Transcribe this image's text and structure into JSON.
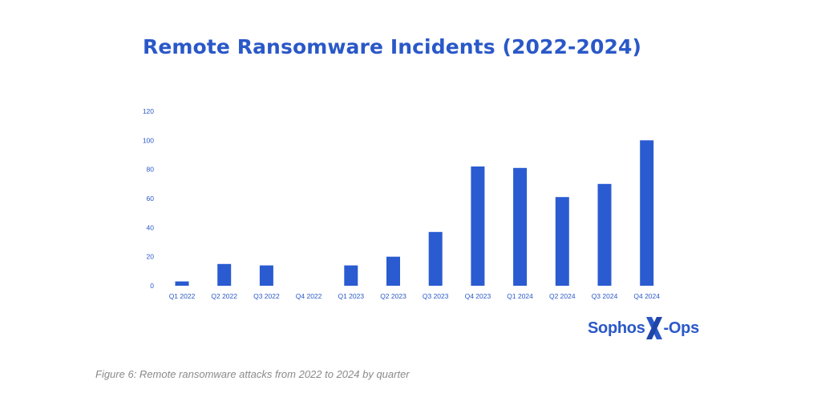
{
  "chart_data": {
    "type": "bar",
    "title": "Remote Ransomware Incidents (2022-2024)",
    "xlabel": "",
    "ylabel": "",
    "categories": [
      "Q1 2022",
      "Q2 2022",
      "Q3 2022",
      "Q4 2022",
      "Q1 2023",
      "Q2 2023",
      "Q3 2023",
      "Q4 2023",
      "Q1 2024",
      "Q2 2024",
      "Q3 2024",
      "Q4 2024"
    ],
    "values": [
      3,
      15,
      14,
      0,
      14,
      20,
      37,
      82,
      81,
      61,
      70,
      100
    ],
    "ylim": [
      0,
      120
    ],
    "yticks": [
      "0",
      "20",
      "40",
      "60",
      "80",
      "100",
      "120"
    ],
    "grid": false,
    "legend": "none",
    "bar_color": "#2a5bd0"
  },
  "logo": {
    "left_text": "Sophos",
    "right_text": "-Ops",
    "mark": "X-mark-icon",
    "color": "#2a58c8"
  },
  "caption": "Figure 6: Remote ransomware attacks from 2022 to 2024 by quarter"
}
